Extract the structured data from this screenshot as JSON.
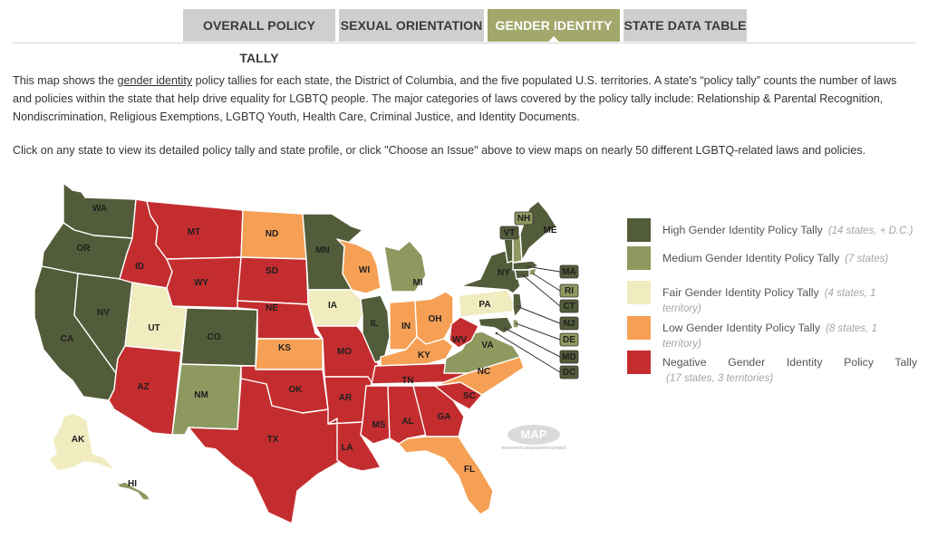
{
  "tabs": [
    {
      "label": "OVERALL POLICY TALLY",
      "active": false
    },
    {
      "label": "SEXUAL ORIENTATION",
      "active": false
    },
    {
      "label": "GENDER IDENTITY",
      "active": true
    },
    {
      "label": "STATE DATA TABLE",
      "active": false
    }
  ],
  "intro": {
    "p1_before": "This map shows the ",
    "p1_link": "gender identity",
    "p1_after": " policy tallies for each state, the District of Columbia, and the five populated U.S. territories. A state's “policy tally” counts the number of laws and policies within the state that help drive equality for LGBTQ people. The major categories of laws covered by the policy tally include: Relationship & Parental Recognition, Nondiscrimination, Religious Exemptions, LGBTQ Youth, Health Care, Criminal Justice, and Identity Documents.",
    "p2": "Click on any state to view its detailed policy tally and state profile, or click \"Choose an Issue\" above to view maps on nearly 50 different LGBTQ-related laws and policies."
  },
  "colors": {
    "high": "#535c3a",
    "medium": "#8e9960",
    "fair": "#f0ecc0",
    "low": "#f5a055",
    "negative": "#c42d2f",
    "tab_active": "#a2a86b",
    "tab_inactive": "#cfcfcf"
  },
  "legend": [
    {
      "key": "high",
      "label": "High Gender Identity Policy Tally",
      "count": "(14 states, + D.C.)"
    },
    {
      "key": "medium",
      "label": "Medium Gender Identity Policy Tally",
      "count": "(7 states)"
    },
    {
      "key": "fair",
      "label": "Fair Gender Identity Policy Tally",
      "count": "(4 states, 1 territory)"
    },
    {
      "key": "low",
      "label": "Low Gender Identity Policy Tally",
      "count": "(8 states, 1 territory)"
    },
    {
      "key": "negative",
      "label": "Negative Gender Identity Policy Tally",
      "count": "(17 states, 3 territories)"
    }
  ],
  "map": {
    "watermark": "MAP",
    "watermark_sub": "movement advancement project",
    "states": {
      "WA": "high",
      "OR": "high",
      "CA": "high",
      "NV": "high",
      "ID": "negative",
      "MT": "negative",
      "WY": "negative",
      "UT": "fair",
      "AZ": "negative",
      "CO": "high",
      "NM": "medium",
      "ND": "low",
      "SD": "negative",
      "NE": "negative",
      "KS": "low",
      "OK": "negative",
      "TX": "negative",
      "MN": "high",
      "IA": "fair",
      "MO": "negative",
      "AR": "negative",
      "LA": "negative",
      "WI": "low",
      "IL": "high",
      "MI": "medium",
      "IN": "low",
      "OH": "low",
      "KY": "low",
      "TN": "negative",
      "MS": "negative",
      "AL": "negative",
      "GA": "negative",
      "FL": "low",
      "SC": "negative",
      "NC": "low",
      "VA": "medium",
      "WV": "negative",
      "PA": "fair",
      "NY": "high",
      "VT": "high",
      "NH": "medium",
      "ME": "high",
      "MA": "high",
      "RI": "medium",
      "CT": "high",
      "NJ": "high",
      "DE": "medium",
      "MD": "high",
      "DC": "high",
      "AK": "fair",
      "HI": "medium"
    }
  }
}
